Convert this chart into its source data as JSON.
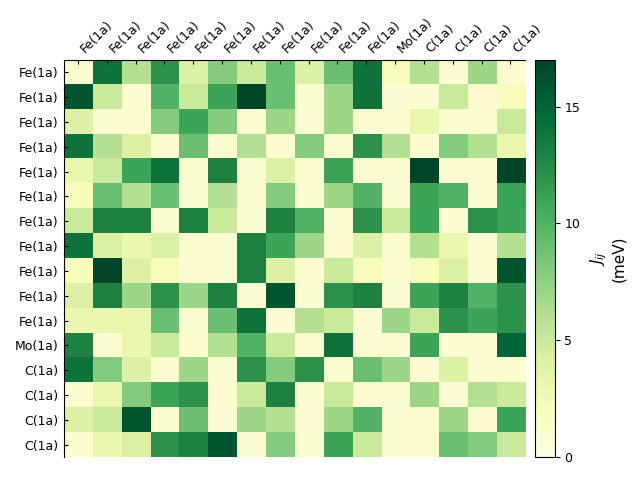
{
  "labels": [
    "Fe(1a)",
    "Fe(1a)",
    "Fe(1a)",
    "Fe(1a)",
    "Fe(1a)",
    "Fe(1a)",
    "Fe(1a)",
    "Fe(1a)",
    "Fe(1a)",
    "Fe(1a)",
    "Fe(1a)",
    "Mo(1a)",
    "C(1a)",
    "C(1a)",
    "C(1a)",
    "C(1a)"
  ],
  "matrix": [
    [
      1,
      14,
      6,
      12,
      4,
      8,
      5,
      9,
      4,
      9,
      14,
      2,
      6,
      1,
      7,
      1
    ],
    [
      16,
      5,
      1,
      10,
      5,
      11,
      18,
      9,
      1,
      7,
      14,
      1,
      1,
      5,
      1,
      2
    ],
    [
      4,
      1,
      1,
      8,
      11,
      8,
      1,
      7,
      1,
      7,
      1,
      1,
      3,
      1,
      1,
      5
    ],
    [
      14,
      6,
      4,
      1,
      9,
      1,
      6,
      1,
      8,
      1,
      12,
      6,
      1,
      8,
      6,
      3
    ],
    [
      3,
      5,
      11,
      14,
      1,
      13,
      1,
      4,
      1,
      11,
      1,
      1,
      17,
      1,
      1,
      17
    ],
    [
      2,
      9,
      6,
      9,
      1,
      6,
      1,
      8,
      1,
      7,
      10,
      1,
      11,
      10,
      1,
      11
    ],
    [
      5,
      13,
      13,
      1,
      13,
      5,
      1,
      13,
      10,
      1,
      12,
      5,
      11,
      1,
      12,
      11
    ],
    [
      14,
      4,
      3,
      4,
      1,
      1,
      13,
      11,
      7,
      1,
      4,
      1,
      6,
      3,
      1,
      6
    ],
    [
      2,
      17,
      4,
      2,
      1,
      1,
      13,
      4,
      1,
      5,
      2,
      1,
      2,
      4,
      1,
      16
    ],
    [
      4,
      13,
      7,
      12,
      7,
      13,
      1,
      16,
      1,
      12,
      13,
      1,
      11,
      13,
      10,
      12
    ],
    [
      3,
      3,
      3,
      9,
      1,
      9,
      14,
      1,
      6,
      5,
      1,
      7,
      5,
      12,
      11,
      12
    ],
    [
      13,
      1,
      3,
      5,
      1,
      6,
      10,
      5,
      1,
      14,
      1,
      1,
      11,
      1,
      1,
      15
    ],
    [
      14,
      8,
      4,
      1,
      7,
      1,
      12,
      8,
      12,
      1,
      9,
      7,
      1,
      4,
      1,
      1
    ],
    [
      1,
      3,
      8,
      11,
      12,
      1,
      5,
      13,
      1,
      5,
      1,
      1,
      7,
      1,
      6,
      5
    ],
    [
      4,
      5,
      16,
      1,
      9,
      1,
      7,
      6,
      1,
      7,
      10,
      1,
      1,
      7,
      1,
      11
    ],
    [
      1,
      3,
      4,
      12,
      13,
      16,
      1,
      8,
      1,
      11,
      5,
      1,
      1,
      9,
      8,
      5
    ]
  ],
  "vmin": 0,
  "vmax": 17,
  "cmap": "YlGn",
  "colorbar_label_line1": "$\\mathit{J_{ij}}$",
  "colorbar_label_line2": "(meV)",
  "colorbar_ticks": [
    0,
    5,
    10,
    15
  ],
  "figsize": [
    6.4,
    4.8
  ],
  "dpi": 100,
  "label_fontsize": 9,
  "tick_fontsize": 9
}
